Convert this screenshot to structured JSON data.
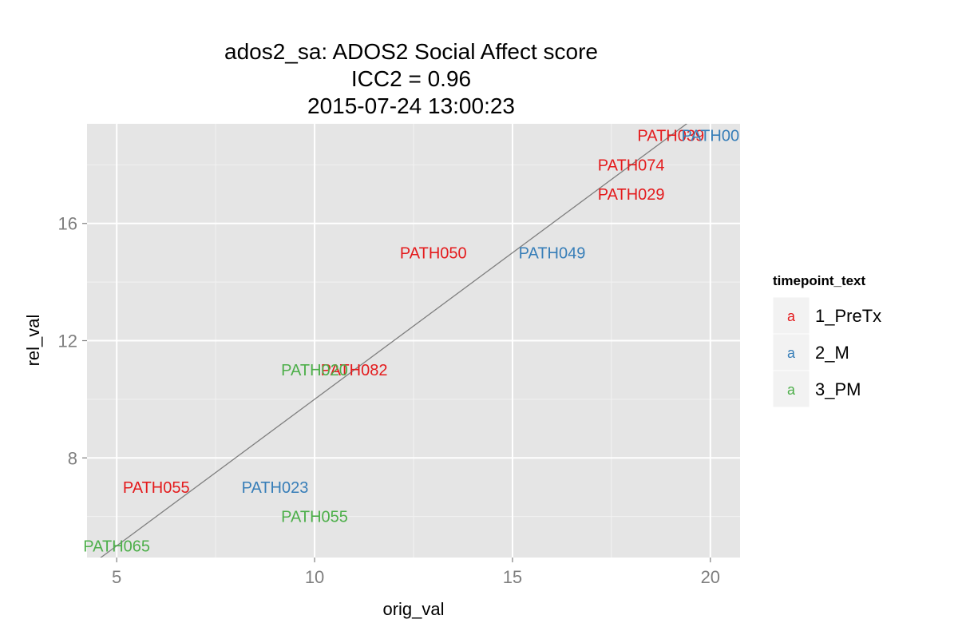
{
  "chart_data": {
    "type": "scatter",
    "title_lines": [
      "ados2_sa: ADOS2 Social Affect score",
      "ICC2 = 0.96",
      "2015-07-24 13:00:23"
    ],
    "xlabel": "orig_val",
    "ylabel": "rel_val",
    "xlim": [
      4.25,
      20.75
    ],
    "ylim": [
      4.6,
      19.4
    ],
    "x_ticks": [
      5,
      10,
      15,
      20
    ],
    "y_ticks": [
      8,
      12,
      16
    ],
    "grid": true,
    "panel_bg": "#e5e5e5",
    "reference_line": {
      "slope": 1,
      "intercept": 0,
      "color": "#7f7f7f"
    },
    "legend": {
      "title": "timepoint_text",
      "placement": "right",
      "key_glyph": "a",
      "entries": [
        {
          "label": "1_PreTx",
          "color": "#e41a1c"
        },
        {
          "label": "2_M",
          "color": "#377eb8"
        },
        {
          "label": "3_PM",
          "color": "#4daf4a"
        }
      ]
    },
    "series": [
      {
        "name": "1_PreTx",
        "color": "#e41a1c",
        "points": [
          {
            "x": 19,
            "y": 19,
            "label": "PATH039"
          },
          {
            "x": 18,
            "y": 18,
            "label": "PATH074"
          },
          {
            "x": 18,
            "y": 17,
            "label": "PATH029"
          },
          {
            "x": 13,
            "y": 15,
            "label": "PATH050"
          },
          {
            "x": 11,
            "y": 11,
            "label": "PATH082"
          },
          {
            "x": 6,
            "y": 7,
            "label": "PATH055"
          }
        ]
      },
      {
        "name": "2_M",
        "color": "#377eb8",
        "points": [
          {
            "x": 20,
            "y": 19,
            "label": "PATH00"
          },
          {
            "x": 16,
            "y": 15,
            "label": "PATH049"
          },
          {
            "x": 9,
            "y": 7,
            "label": "PATH023"
          }
        ]
      },
      {
        "name": "3_PM",
        "color": "#4daf4a",
        "points": [
          {
            "x": 10,
            "y": 11,
            "label": "PATH020"
          },
          {
            "x": 10,
            "y": 6,
            "label": "PATH055"
          },
          {
            "x": 5,
            "y": 5,
            "label": "PATH065"
          }
        ]
      }
    ]
  }
}
